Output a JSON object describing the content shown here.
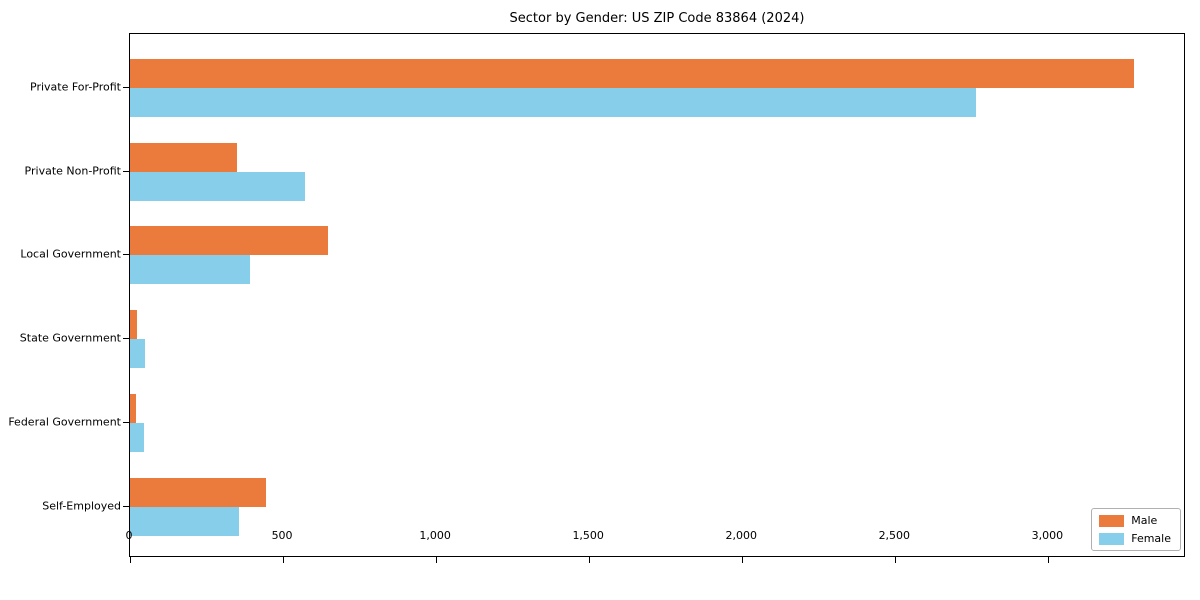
{
  "chart_data": {
    "type": "bar",
    "orientation": "horizontal",
    "title": "Sector by Gender: US ZIP Code 83864 (2024)",
    "xlabel": "",
    "ylabel": "",
    "grid": false,
    "legend_position": "lower right",
    "xlim": [
      0,
      3443
    ],
    "categories": [
      "Private For-Profit",
      "Private Non-Profit",
      "Local Government",
      "State Government",
      "Federal Government",
      "Self-Employed"
    ],
    "series": [
      {
        "name": "Male",
        "color": "#ea7b3c",
        "values": [
          3280,
          350,
          648,
          22,
          20,
          444
        ]
      },
      {
        "name": "Female",
        "color": "#87ceeb",
        "values": [
          2764,
          571,
          392,
          50,
          46,
          356
        ]
      }
    ],
    "x_ticks": [
      {
        "value": 0,
        "label": "0"
      },
      {
        "value": 500,
        "label": "500"
      },
      {
        "value": 1000,
        "label": "1,000"
      },
      {
        "value": 1500,
        "label": "1,500"
      },
      {
        "value": 2000,
        "label": "2,000"
      },
      {
        "value": 2500,
        "label": "2,500"
      },
      {
        "value": 3000,
        "label": "3,000"
      }
    ]
  }
}
